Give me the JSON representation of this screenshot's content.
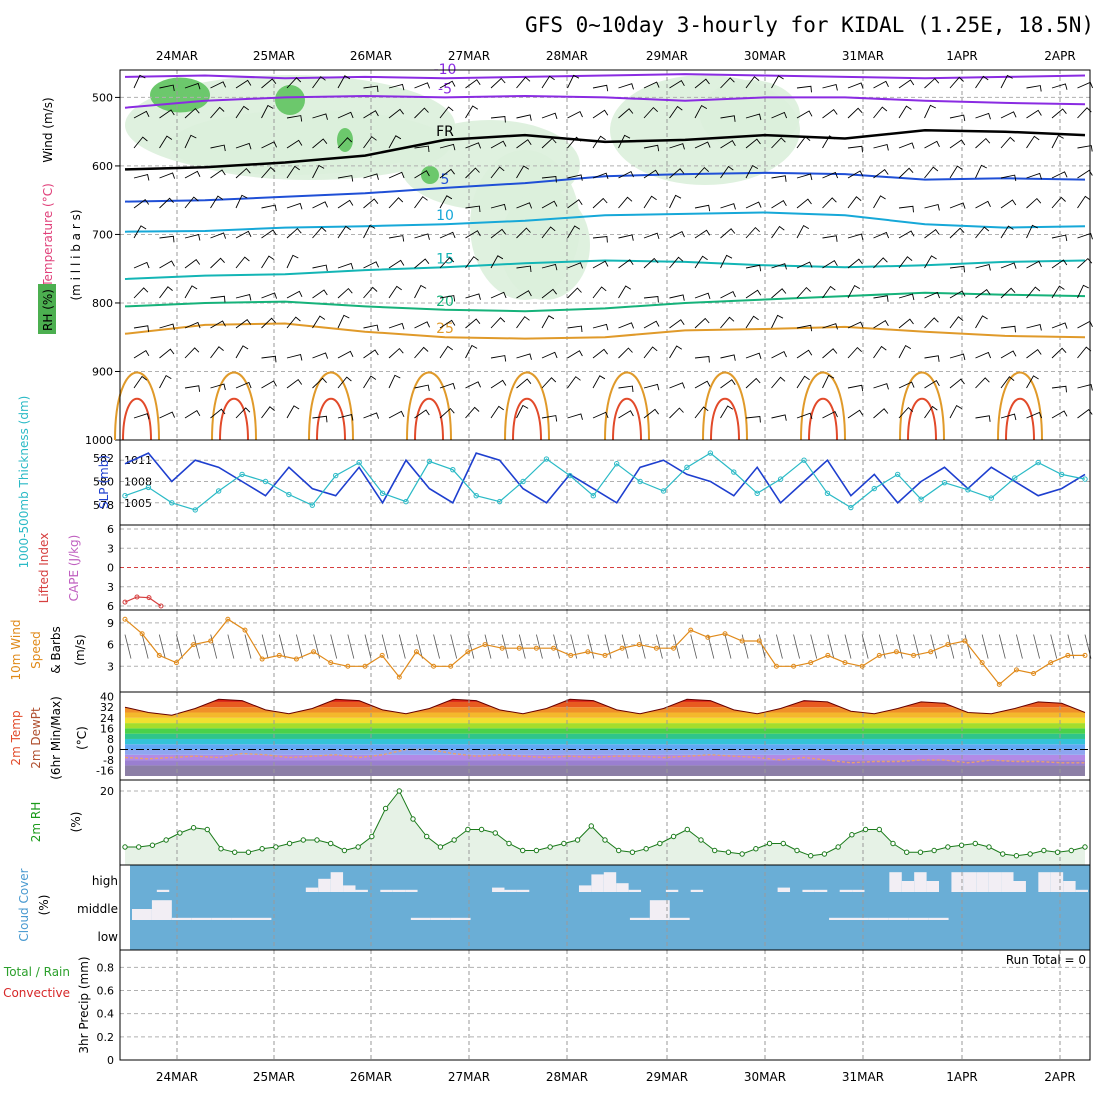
{
  "title": "GFS 0~10day 3-hourly for KIDAL (1.25E, 18.5N)",
  "run_total": "Run Total = 0",
  "colors": {
    "rh": "#4caf50",
    "rh_light": "#dcefdc",
    "temp_cold": "#8a2be2",
    "temp_freezing": "#000000",
    "temp_cool": "#1f4fd6",
    "temp_mid": "#16a8d8",
    "temp_warm": "#13b5b5",
    "temp_20": "#16b27a",
    "temp_25": "#e09a2a",
    "temp_hot": "#e24a2a",
    "slp": "#1e3fcf",
    "thickness": "#2bbac6",
    "lifted_index": "#d64040",
    "wind10m": "#e08a1a",
    "cloud": "#6aaed6",
    "precip_total": "#2ca02c",
    "precip_conv": "#d62728"
  },
  "chart_data": [
    {
      "id": "upper_air",
      "type": "contour",
      "ylabel_parts": [
        "RH (%)",
        "Temperature (°C)",
        "Wind (m/s)"
      ],
      "ylabel2": "(m i l l i b a r s)",
      "y_ticks": [
        500,
        600,
        700,
        800,
        900,
        1000
      ],
      "ylim": [
        460,
        1000
      ],
      "x_categories": [
        "24MAR",
        "25MAR",
        "26MAR",
        "27MAR",
        "28MAR",
        "29MAR",
        "30MAR",
        "31MAR",
        "1APR",
        "2APR"
      ],
      "isotherms": [
        {
          "value": -10,
          "label": "-10",
          "pressure": [
            470,
            468,
            472,
            470,
            472,
            470,
            468,
            466,
            468,
            470,
            472,
            470,
            468
          ]
        },
        {
          "value": -5,
          "label": "-5",
          "pressure": [
            515,
            505,
            500,
            498,
            500,
            498,
            500,
            505,
            500,
            500,
            505,
            508,
            510
          ]
        },
        {
          "value": 0,
          "label": "FR",
          "pressure": [
            605,
            602,
            595,
            585,
            562,
            555,
            565,
            562,
            555,
            560,
            548,
            550,
            555
          ]
        },
        {
          "value": 5,
          "label": "5",
          "pressure": [
            652,
            650,
            645,
            640,
            632,
            625,
            615,
            612,
            610,
            612,
            620,
            618,
            620
          ]
        },
        {
          "value": 10,
          "label": "10",
          "pressure": [
            696,
            695,
            690,
            688,
            685,
            680,
            672,
            670,
            668,
            672,
            685,
            690,
            688
          ]
        },
        {
          "value": 15,
          "label": "15",
          "pressure": [
            765,
            760,
            758,
            752,
            748,
            742,
            738,
            740,
            745,
            748,
            745,
            740,
            738
          ]
        },
        {
          "value": 20,
          "label": "20",
          "pressure": [
            805,
            800,
            798,
            805,
            810,
            812,
            808,
            800,
            795,
            790,
            785,
            788,
            790
          ]
        },
        {
          "value": 25,
          "label": "25",
          "pressure": [
            845,
            832,
            830,
            842,
            850,
            852,
            850,
            840,
            838,
            835,
            842,
            848,
            850
          ]
        }
      ],
      "rh_levels": [
        10,
        30,
        50
      ]
    },
    {
      "id": "thickness_slp",
      "type": "line",
      "ylabel_left": "1000-500mb Thickness (dm)",
      "ylabel_right": "SLP (mb)",
      "left_ticks": [
        578,
        580,
        582
      ],
      "right_ticks": [
        1005,
        1008,
        1011
      ],
      "series": [
        {
          "name": "SLP",
          "values": [
            1010.5,
            1012,
            1008,
            1011,
            1010,
            1008,
            1006,
            1010,
            1007,
            1006,
            1010,
            1005,
            1011,
            1007,
            1005,
            1012,
            1011,
            1007,
            1005,
            1009,
            1007,
            1005,
            1010,
            1011,
            1009,
            1008,
            1006,
            1010,
            1005,
            1008,
            1011,
            1006,
            1009,
            1005,
            1008,
            1010,
            1007,
            1010,
            1008,
            1006,
            1007,
            1009
          ]
        },
        {
          "name": "Thickness",
          "values": [
            578.8,
            579.5,
            578.2,
            577.6,
            579.2,
            580.6,
            580.0,
            578.9,
            578.0,
            580.5,
            581.6,
            579.0,
            578.3,
            581.7,
            581.0,
            578.8,
            578.3,
            580.0,
            581.9,
            580.5,
            578.8,
            581.5,
            580.0,
            579.2,
            581.2,
            582.4,
            580.8,
            579.0,
            580.2,
            581.8,
            579.0,
            577.8,
            579.4,
            580.6,
            578.5,
            579.9,
            579.3,
            578.6,
            580.3,
            581.6,
            580.6,
            580.2
          ]
        }
      ]
    },
    {
      "id": "lifted_cape",
      "type": "line",
      "ylabel_left": "Lifted Index",
      "ylabel_right": "CAPE (J/kg)",
      "y_ticks": [
        -6,
        -3,
        0,
        3,
        6
      ],
      "y_tick_labels": [
        "6",
        "3",
        "0",
        "3",
        "6"
      ],
      "series": [
        {
          "name": "Lifted Index",
          "values": [
            5.4,
            4.6,
            4.7,
            6.0
          ]
        }
      ]
    },
    {
      "id": "wind10m",
      "type": "line",
      "ylabel": "10m Wind Speed & Barbs (m/s)",
      "y_ticks": [
        3,
        6,
        9
      ],
      "series": [
        {
          "name": "10m Wind Speed",
          "values": [
            9.5,
            7.5,
            4.5,
            3.5,
            6,
            6.5,
            9.5,
            8,
            4,
            4.5,
            4,
            5,
            3.5,
            3,
            3,
            4.5,
            1.5,
            5,
            3,
            3,
            5,
            6,
            5.5,
            5.5,
            5.5,
            5.5,
            4.5,
            5,
            4.5,
            5.5,
            6,
            5.5,
            5.5,
            8,
            7,
            7.5,
            6.5,
            6.5,
            3,
            3,
            3.5,
            4.5,
            3.5,
            3,
            4.5,
            5,
            4.5,
            5,
            6,
            6.5,
            3.5,
            0.5,
            2.5,
            2,
            3.5,
            4.5,
            4.5
          ]
        }
      ]
    },
    {
      "id": "temp2m",
      "type": "area",
      "ylabel": "2m Temp 2m DewPt (6hr Min/Max) (°C)",
      "y_ticks": [
        -16,
        -8,
        0,
        8,
        16,
        24,
        32,
        40
      ],
      "series": [
        {
          "name": "2m Temp",
          "values": [
            32,
            28,
            26,
            31,
            38,
            37,
            30,
            27,
            31,
            38,
            37,
            30,
            27,
            31,
            38,
            37,
            30,
            27,
            31,
            38,
            37,
            30,
            27,
            31,
            38,
            37,
            30,
            27,
            31,
            37,
            36,
            29,
            27,
            31,
            36,
            35,
            28,
            27,
            31,
            36,
            35,
            28
          ]
        },
        {
          "name": "2m DewPt",
          "values": [
            -6,
            -7,
            -6,
            -5,
            -6,
            -3,
            -4,
            -6,
            -5,
            -4,
            -6,
            -4,
            0,
            0,
            -3,
            -5,
            -4,
            -5,
            -6,
            -5,
            -6,
            -5,
            -5,
            -6,
            -5,
            -4,
            -5,
            -6,
            -8,
            -6,
            -8,
            -10,
            -9,
            -9,
            -8,
            -8,
            -10,
            -8,
            -9,
            -9,
            -10,
            -10
          ]
        }
      ]
    },
    {
      "id": "rh2m",
      "type": "line",
      "ylabel": "2m RH (%)",
      "y_ticks": [
        20
      ],
      "series": [
        {
          "name": "2m RH",
          "values": [
            4,
            4,
            4.5,
            6,
            8,
            9.5,
            9,
            3.5,
            2.5,
            2.5,
            3.5,
            4,
            5,
            6,
            6,
            5,
            3,
            4,
            7,
            15,
            20,
            12,
            7,
            4,
            6,
            9,
            9,
            8,
            5,
            3,
            3,
            4,
            5,
            6,
            10,
            6,
            3,
            2.5,
            3.5,
            5,
            7,
            9,
            6,
            3,
            2.5,
            2,
            3.5,
            5,
            5,
            3,
            1.5,
            2,
            4,
            7.5,
            9,
            9,
            5,
            2.5,
            2.5,
            3,
            4,
            4.5,
            5,
            4,
            2,
            1.5,
            2,
            3,
            2.5,
            3,
            4
          ]
        }
      ]
    },
    {
      "id": "cloud",
      "type": "bar",
      "ylabel": "Cloud Cover (%)",
      "levels": [
        "high",
        "middle",
        "low"
      ],
      "series": [
        {
          "name": "high",
          "values": [
            0,
            0,
            0.1,
            0,
            0,
            0,
            0,
            0,
            0,
            0,
            0,
            0,
            0,
            0,
            0.2,
            0.6,
            0.9,
            0.3,
            0.1,
            0,
            0.1,
            0.1,
            0.1,
            0,
            0,
            0,
            0,
            0,
            0,
            0.2,
            0.1,
            0.1,
            0,
            0,
            0,
            0,
            0.3,
            0.8,
            0.9,
            0.4,
            0.1,
            0,
            0,
            0.1,
            0,
            0.1,
            0,
            0,
            0,
            0,
            0,
            0,
            0.2,
            0,
            0.1,
            0.1,
            0,
            0.1,
            0.1,
            0,
            0,
            0.9,
            0.5,
            0.9,
            0.5,
            0,
            0.9,
            0.9,
            0.9,
            0.9,
            0.9,
            0.5,
            0,
            0.9,
            0.9,
            0.5,
            0.1
          ]
        },
        {
          "name": "middle",
          "values": [
            0.5,
            0.9,
            0.1,
            0.1,
            0.1,
            0.1,
            0.1,
            0,
            0,
            0,
            0,
            0,
            0,
            0,
            0.1,
            0.1,
            0.1,
            0,
            0,
            0,
            0,
            0,
            0,
            0,
            0,
            0.1,
            0.9,
            0.1,
            0,
            0,
            0,
            0,
            0,
            0,
            0,
            0.1,
            0.1,
            0.1,
            0.1,
            0.1,
            0.1,
            0,
            0,
            0,
            0,
            0,
            0,
            0
          ]
        }
      ]
    },
    {
      "id": "precip",
      "type": "bar",
      "ylabel": "3hr Precip (mm)",
      "legend": [
        "Total / Rain",
        "Convective"
      ],
      "y_ticks": [
        0,
        0.2,
        0.4,
        0.6,
        0.8
      ],
      "ylim": [
        0,
        0.95
      ],
      "series": [
        {
          "name": "Total",
          "values": []
        }
      ]
    }
  ]
}
